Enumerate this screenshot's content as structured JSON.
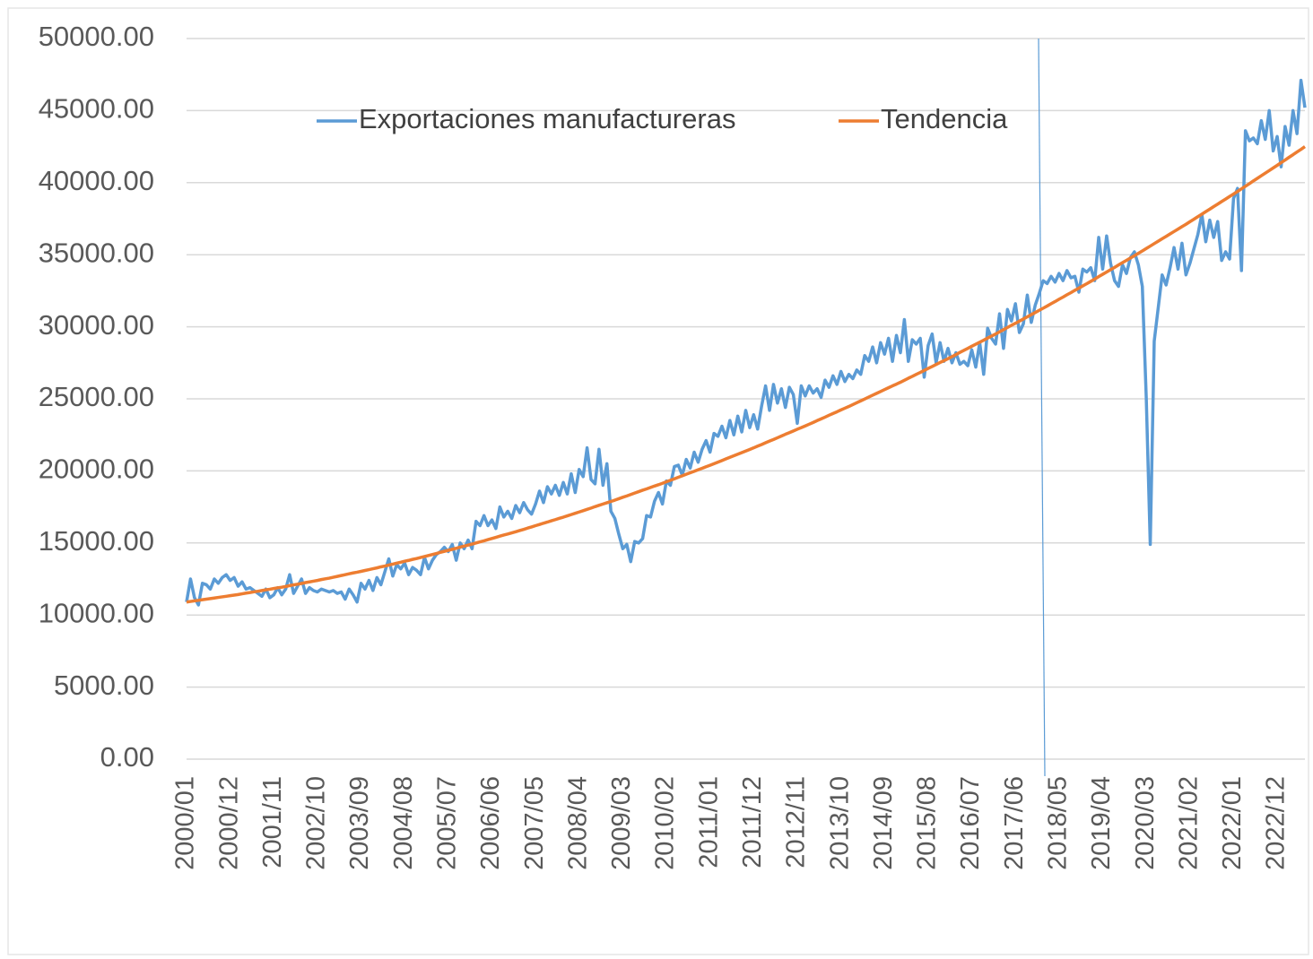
{
  "chart_data": {
    "type": "line",
    "categories": [
      "2000/01",
      null,
      null,
      null,
      null,
      null,
      null,
      null,
      null,
      null,
      null,
      "2000/12",
      null,
      null,
      null,
      null,
      null,
      null,
      null,
      null,
      null,
      null,
      "2001/11",
      null,
      null,
      null,
      null,
      null,
      null,
      null,
      null,
      null,
      null,
      "2002/10",
      null,
      null,
      null,
      null,
      null,
      null,
      null,
      null,
      null,
      null,
      "2003/09",
      null,
      null,
      null,
      null,
      null,
      null,
      null,
      null,
      null,
      null,
      "2004/08",
      null,
      null,
      null,
      null,
      null,
      null,
      null,
      null,
      null,
      null,
      "2005/07",
      null,
      null,
      null,
      null,
      null,
      null,
      null,
      null,
      null,
      null,
      "2006/06",
      null,
      null,
      null,
      null,
      null,
      null,
      null,
      null,
      null,
      null,
      "2007/05",
      null,
      null,
      null,
      null,
      null,
      null,
      null,
      null,
      null,
      null,
      "2008/04",
      null,
      null,
      null,
      null,
      null,
      null,
      null,
      null,
      null,
      null,
      "2009/03",
      null,
      null,
      null,
      null,
      null,
      null,
      null,
      null,
      null,
      null,
      "2010/02",
      null,
      null,
      null,
      null,
      null,
      null,
      null,
      null,
      null,
      null,
      "2011/01",
      null,
      null,
      null,
      null,
      null,
      null,
      null,
      null,
      null,
      null,
      "2011/12",
      null,
      null,
      null,
      null,
      null,
      null,
      null,
      null,
      null,
      null,
      "2012/11",
      null,
      null,
      null,
      null,
      null,
      null,
      null,
      null,
      null,
      null,
      "2013/10",
      null,
      null,
      null,
      null,
      null,
      null,
      null,
      null,
      null,
      null,
      "2014/09",
      null,
      null,
      null,
      null,
      null,
      null,
      null,
      null,
      null,
      null,
      "2015/08",
      null,
      null,
      null,
      null,
      null,
      null,
      null,
      null,
      null,
      null,
      "2016/07",
      null,
      null,
      null,
      null,
      null,
      null,
      null,
      null,
      null,
      null,
      "2017/06",
      null,
      null,
      null,
      null,
      null,
      null,
      null,
      null,
      null,
      null,
      "2018/05",
      null,
      null,
      null,
      null,
      null,
      null,
      null,
      null,
      null,
      null,
      "2019/04",
      null,
      null,
      null,
      null,
      null,
      null,
      null,
      null,
      null,
      null,
      "2020/03",
      null,
      null,
      null,
      null,
      null,
      null,
      null,
      null,
      null,
      null,
      "2021/02",
      null,
      null,
      null,
      null,
      null,
      null,
      null,
      null,
      null,
      null,
      "2022/01",
      null,
      null,
      null,
      null,
      null,
      null,
      null,
      null,
      null,
      null,
      "2022/12",
      null,
      null,
      null,
      null,
      null,
      null,
      null
    ],
    "series": [
      {
        "name": "Exportaciones manufactureras",
        "color": "#5b9bd5",
        "values": [
          10900,
          12500,
          11200,
          10700,
          12200,
          12100,
          11800,
          12500,
          12200,
          12600,
          12800,
          12400,
          12600,
          12000,
          12300,
          11800,
          11900,
          11700,
          11500,
          11300,
          11800,
          11200,
          11400,
          11900,
          11400,
          11800,
          12800,
          11500,
          12000,
          12500,
          11500,
          11900,
          11700,
          11600,
          11800,
          11700,
          11600,
          11700,
          11500,
          11600,
          11100,
          11800,
          11400,
          10900,
          12200,
          11800,
          12400,
          11700,
          12600,
          12100,
          13000,
          13900,
          12700,
          13500,
          13200,
          13600,
          12800,
          13300,
          13100,
          12800,
          14000,
          13200,
          13800,
          14200,
          14400,
          14700,
          14400,
          14900,
          13800,
          15000,
          14600,
          15200,
          14600,
          16500,
          16200,
          16900,
          16200,
          16600,
          16000,
          17500,
          16800,
          17200,
          16700,
          17600,
          17100,
          17800,
          17300,
          17000,
          17700,
          18600,
          17800,
          18900,
          18400,
          19000,
          18300,
          19200,
          18400,
          19800,
          18500,
          20100,
          19600,
          21600,
          19400,
          19100,
          21500,
          19000,
          20500,
          17200,
          16700,
          15600,
          14600,
          14900,
          13700,
          15100,
          15000,
          15300,
          16900,
          16800,
          17900,
          18500,
          17700,
          19300,
          19000,
          20300,
          20400,
          19700,
          20800,
          20200,
          21300,
          20600,
          21500,
          22100,
          21300,
          22600,
          22400,
          23100,
          22300,
          23500,
          22500,
          23800,
          22700,
          24200,
          23000,
          23900,
          22900,
          24500,
          25900,
          24200,
          26000,
          24700,
          25700,
          24400,
          25800,
          25300,
          23300,
          25900,
          25200,
          25900,
          25400,
          25700,
          25100,
          26300,
          25800,
          26600,
          26000,
          26900,
          26200,
          26700,
          26400,
          27000,
          26700,
          28000,
          27600,
          28600,
          27500,
          28900,
          28100,
          29200,
          27600,
          29400,
          28200,
          30500,
          27600,
          29100,
          28800,
          29200,
          26500,
          28700,
          29500,
          27500,
          28900,
          27600,
          28500,
          27500,
          28200,
          27400,
          27600,
          27300,
          28400,
          27200,
          28900,
          26700,
          29900,
          29200,
          28800,
          30900,
          28500,
          31200,
          30400,
          31600,
          29600,
          30200,
          32200,
          30300,
          31500,
          32300,
          33200,
          33000,
          33500,
          33100,
          33700,
          33200,
          33900,
          33400,
          33500,
          32400,
          34000,
          33800,
          34100,
          33200,
          36200,
          34000,
          36300,
          34400,
          33200,
          32800,
          34300,
          33700,
          34800,
          35200,
          34300,
          32800,
          25000,
          14900,
          29000,
          31300,
          33600,
          32900,
          34100,
          35500,
          34000,
          35800,
          33600,
          34400,
          35400,
          36400,
          37800,
          35900,
          37400,
          36200,
          37300,
          34600,
          35200,
          34700,
          38900,
          39600,
          33900,
          43600,
          42900,
          43100,
          42700,
          44300,
          43000,
          45000,
          42200,
          43200,
          41100,
          43900,
          42600,
          45000,
          43400,
          47100,
          45200
        ]
      },
      {
        "name": "Tendencia",
        "color": "#ed7d31",
        "values": [
          10900,
          10940,
          10980,
          11020,
          11060,
          11100,
          11140,
          11180,
          11220,
          11260,
          11300,
          11340,
          11380,
          11420,
          11470,
          11520,
          11560,
          11610,
          11650,
          11700,
          11750,
          11790,
          11840,
          11890,
          11930,
          11980,
          12040,
          12090,
          12140,
          12190,
          12250,
          12300,
          12350,
          12400,
          12460,
          12510,
          12560,
          12620,
          12680,
          12740,
          12800,
          12860,
          12920,
          12970,
          13030,
          13090,
          13150,
          13210,
          13270,
          13340,
          13400,
          13470,
          13530,
          13600,
          13660,
          13730,
          13790,
          13860,
          13920,
          13990,
          14060,
          14130,
          14200,
          14270,
          14350,
          14420,
          14490,
          14560,
          14630,
          14710,
          14780,
          14850,
          14920,
          15000,
          15080,
          15150,
          15230,
          15310,
          15390,
          15470,
          15550,
          15620,
          15700,
          15780,
          15860,
          15940,
          16030,
          16110,
          16200,
          16280,
          16370,
          16450,
          16540,
          16620,
          16710,
          16790,
          16880,
          16970,
          17060,
          17150,
          17240,
          17330,
          17420,
          17520,
          17610,
          17700,
          17790,
          17880,
          17970,
          18070,
          18170,
          18260,
          18360,
          18460,
          18560,
          18660,
          18750,
          18850,
          18950,
          19040,
          19140,
          19250,
          19350,
          19450,
          19560,
          19660,
          19770,
          19870,
          19970,
          20080,
          20180,
          20290,
          20390,
          20500,
          20610,
          20720,
          20830,
          20940,
          21050,
          21160,
          21270,
          21380,
          21490,
          21600,
          21720,
          21830,
          21950,
          22070,
          22180,
          22300,
          22420,
          22540,
          22650,
          22770,
          22890,
          23000,
          23120,
          23240,
          23360,
          23490,
          23610,
          23730,
          23860,
          23980,
          24100,
          24230,
          24350,
          24470,
          24600,
          24730,
          24860,
          24990,
          25120,
          25250,
          25380,
          25510,
          25640,
          25770,
          25900,
          26020,
          26150,
          26290,
          26430,
          26560,
          26700,
          26830,
          26970,
          27110,
          27240,
          27380,
          27520,
          27650,
          27790,
          27930,
          28070,
          28220,
          28360,
          28500,
          28650,
          28790,
          28930,
          29070,
          29220,
          29360,
          29500,
          29650,
          29800,
          29950,
          30100,
          30240,
          30390,
          30540,
          30690,
          30840,
          30990,
          31140,
          31290,
          31440,
          31600,
          31750,
          31910,
          32060,
          32220,
          32370,
          32530,
          32680,
          32840,
          32990,
          33150,
          33310,
          33480,
          33640,
          33800,
          33960,
          34120,
          34290,
          34450,
          34610,
          34770,
          34930,
          35100,
          35260,
          35430,
          35600,
          35770,
          35940,
          36110,
          36270,
          36440,
          36610,
          36780,
          36950,
          37110,
          37290,
          37460,
          37640,
          37810,
          37990,
          38160,
          38340,
          38510,
          38690,
          38860,
          39040,
          39210,
          39390,
          39570,
          39750,
          39930,
          40120,
          40300,
          40480,
          40660,
          40840,
          41020,
          41200,
          41390,
          41570,
          41760,
          41940,
          42130,
          42310,
          42500
        ]
      }
    ],
    "ylim": [
      0,
      50000
    ],
    "yticks": [
      {
        "value": 0,
        "label": "0.00"
      },
      {
        "value": 5000,
        "label": "5000.00"
      },
      {
        "value": 10000,
        "label": "10000.00"
      },
      {
        "value": 15000,
        "label": "15000.00"
      },
      {
        "value": 20000,
        "label": "20000.00"
      },
      {
        "value": 25000,
        "label": "25000.00"
      },
      {
        "value": 30000,
        "label": "30000.00"
      },
      {
        "value": 35000,
        "label": "35000.00"
      },
      {
        "value": 40000,
        "label": "40000.00"
      },
      {
        "value": 45000,
        "label": "45000.00"
      },
      {
        "value": 50000,
        "label": "50000.00"
      }
    ],
    "grid": true,
    "legend": "top"
  }
}
